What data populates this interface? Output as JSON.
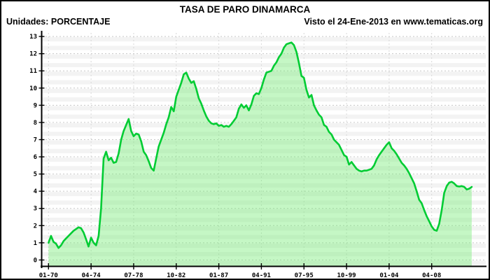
{
  "header": {
    "title": "TASA DE PARO DINAMARCA",
    "units_label": "Unidades: PORCENTAJE",
    "visited_label": "Visto el 24-Ene-2013 en www.tematicas.org"
  },
  "chart_data": {
    "type": "area",
    "title": "TASA DE PARO DINAMARCA",
    "ylabel": "PORCENTAJE",
    "frequency": "quarterly",
    "x_first_tick_label": "01-70",
    "x_tick_labels": [
      "01-70",
      "04-74",
      "07-78",
      "10-82",
      "01-87",
      "04-91",
      "07-95",
      "10-99",
      "01-04",
      "04-08"
    ],
    "x_tick_indices": [
      0,
      17,
      34,
      51,
      68,
      85,
      102,
      119,
      136,
      153
    ],
    "y_tick_labels": [
      "0",
      "1",
      "2",
      "3",
      "4",
      "5",
      "6",
      "7",
      "8",
      "9",
      "10",
      "11",
      "12",
      "13"
    ],
    "ylim": [
      0,
      13
    ],
    "grid": true,
    "legend_position": "none",
    "line_color": "#00cc33",
    "fill_color": "rgba(110,235,110,0.40)",
    "background_stripe_color": "#f3f3f3",
    "grid_color": "#c8c8c8",
    "axis_color": "#000000",
    "n_points": 170,
    "values": [
      1.0,
      1.4,
      1.05,
      0.95,
      0.7,
      0.85,
      1.1,
      1.25,
      1.4,
      1.55,
      1.7,
      1.8,
      1.9,
      1.85,
      1.6,
      1.2,
      0.78,
      1.3,
      1.0,
      0.85,
      1.4,
      3.0,
      5.9,
      6.3,
      5.8,
      5.95,
      5.65,
      5.7,
      6.2,
      7.0,
      7.5,
      7.85,
      8.2,
      7.5,
      7.2,
      7.35,
      7.3,
      6.9,
      6.3,
      6.1,
      5.75,
      5.35,
      5.2,
      5.9,
      6.6,
      7.0,
      7.4,
      7.9,
      8.3,
      8.9,
      8.65,
      9.5,
      9.9,
      10.3,
      10.8,
      10.9,
      10.55,
      10.3,
      10.4,
      9.95,
      9.4,
      9.1,
      8.7,
      8.35,
      8.1,
      7.95,
      7.9,
      7.95,
      7.8,
      7.85,
      7.75,
      7.8,
      7.75,
      7.9,
      8.1,
      8.3,
      8.8,
      9.05,
      8.85,
      9.0,
      8.7,
      9.05,
      9.55,
      9.7,
      9.65,
      10.0,
      10.5,
      10.9,
      10.95,
      11.0,
      11.3,
      11.5,
      11.8,
      12.0,
      12.35,
      12.55,
      12.6,
      12.65,
      12.5,
      12.1,
      11.45,
      10.7,
      10.6,
      9.9,
      9.45,
      9.6,
      9.0,
      8.7,
      8.45,
      8.3,
      7.85,
      7.75,
      7.45,
      7.3,
      7.0,
      6.85,
      6.7,
      6.4,
      6.1,
      6.0,
      5.55,
      5.7,
      5.5,
      5.3,
      5.2,
      5.15,
      5.2,
      5.2,
      5.25,
      5.3,
      5.5,
      5.85,
      6.1,
      6.3,
      6.5,
      6.7,
      6.85,
      6.5,
      6.35,
      6.15,
      5.9,
      5.65,
      5.5,
      5.3,
      5.05,
      4.75,
      4.45,
      4.0,
      3.5,
      3.3,
      2.9,
      2.55,
      2.25,
      1.95,
      1.75,
      1.7,
      2.1,
      2.9,
      3.9,
      4.3,
      4.5,
      4.55,
      4.45,
      4.3,
      4.27,
      4.3,
      4.25,
      4.1,
      4.15,
      4.25
    ]
  }
}
